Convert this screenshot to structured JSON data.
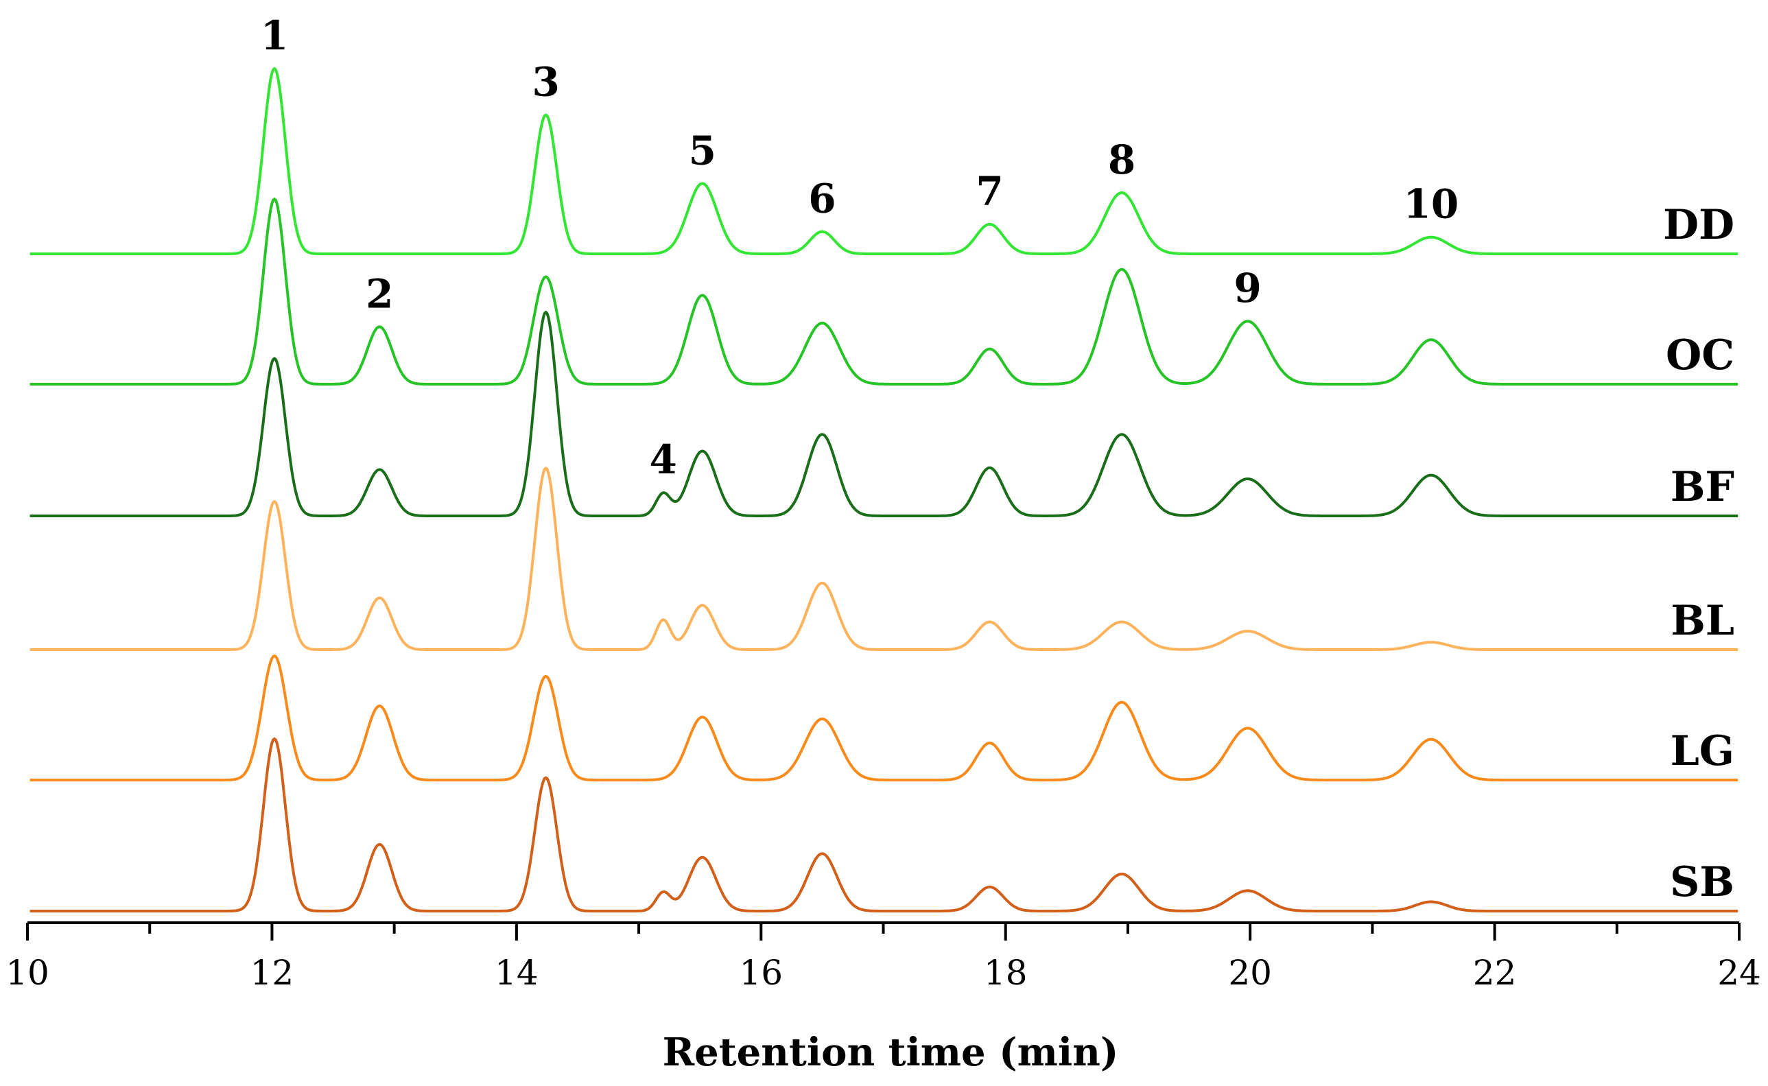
{
  "chart_data": {
    "type": "line",
    "title": "",
    "xlabel": "Retention time (min)",
    "ylabel": "",
    "xlim": [
      10,
      24
    ],
    "x_ticks": [
      10,
      12,
      14,
      16,
      18,
      20,
      22,
      24
    ],
    "x_tick_labels": [
      "10",
      "12",
      "14",
      "16",
      "18",
      "20",
      "22",
      "24"
    ],
    "grid": false,
    "legend": "none",
    "peaks": [
      {
        "id": "1",
        "rt": 12.02
      },
      {
        "id": "2",
        "rt": 12.88
      },
      {
        "id": "3",
        "rt": 14.24
      },
      {
        "id": "4",
        "rt": 15.2
      },
      {
        "id": "5",
        "rt": 15.52
      },
      {
        "id": "6",
        "rt": 16.5
      },
      {
        "id": "7",
        "rt": 17.87
      },
      {
        "id": "8",
        "rt": 18.95
      },
      {
        "id": "9",
        "rt": 19.98
      },
      {
        "id": "10",
        "rt": 21.48
      }
    ],
    "series": [
      {
        "name": "DD",
        "color": "#33e633",
        "peaks": [
          {
            "rt": 12.02,
            "height": 1.0,
            "width": 0.09
          },
          {
            "rt": 14.24,
            "height": 0.75,
            "width": 0.09
          },
          {
            "rt": 15.52,
            "height": 0.38,
            "width": 0.12
          },
          {
            "rt": 16.5,
            "height": 0.12,
            "width": 0.1
          },
          {
            "rt": 17.87,
            "height": 0.16,
            "width": 0.11
          },
          {
            "rt": 18.95,
            "height": 0.33,
            "width": 0.14
          },
          {
            "rt": 21.48,
            "height": 0.09,
            "width": 0.14
          }
        ]
      },
      {
        "name": "OC",
        "color": "#27c427",
        "peaks": [
          {
            "rt": 12.02,
            "height": 1.0,
            "width": 0.09
          },
          {
            "rt": 12.88,
            "height": 0.31,
            "width": 0.1
          },
          {
            "rt": 14.24,
            "height": 0.58,
            "width": 0.1
          },
          {
            "rt": 15.52,
            "height": 0.48,
            "width": 0.12
          },
          {
            "rt": 16.5,
            "height": 0.33,
            "width": 0.14
          },
          {
            "rt": 17.87,
            "height": 0.19,
            "width": 0.11
          },
          {
            "rt": 18.95,
            "height": 0.62,
            "width": 0.15
          },
          {
            "rt": 19.98,
            "height": 0.34,
            "width": 0.16
          },
          {
            "rt": 21.48,
            "height": 0.24,
            "width": 0.15
          }
        ]
      },
      {
        "name": "BF",
        "color": "#1a6e1a",
        "peaks": [
          {
            "rt": 12.02,
            "height": 0.85,
            "width": 0.09
          },
          {
            "rt": 12.88,
            "height": 0.25,
            "width": 0.1
          },
          {
            "rt": 14.24,
            "height": 1.1,
            "width": 0.09
          },
          {
            "rt": 15.2,
            "height": 0.12,
            "width": 0.06
          },
          {
            "rt": 15.52,
            "height": 0.35,
            "width": 0.11
          },
          {
            "rt": 16.5,
            "height": 0.44,
            "width": 0.12
          },
          {
            "rt": 17.87,
            "height": 0.26,
            "width": 0.11
          },
          {
            "rt": 18.95,
            "height": 0.44,
            "width": 0.15
          },
          {
            "rt": 19.98,
            "height": 0.2,
            "width": 0.16
          },
          {
            "rt": 21.48,
            "height": 0.22,
            "width": 0.15
          }
        ]
      },
      {
        "name": "BL",
        "color": "#fdb35c",
        "peaks": [
          {
            "rt": 12.02,
            "height": 0.8,
            "width": 0.09
          },
          {
            "rt": 12.88,
            "height": 0.28,
            "width": 0.1
          },
          {
            "rt": 14.24,
            "height": 0.98,
            "width": 0.09
          },
          {
            "rt": 15.2,
            "height": 0.16,
            "width": 0.06
          },
          {
            "rt": 15.52,
            "height": 0.24,
            "width": 0.1
          },
          {
            "rt": 16.5,
            "height": 0.36,
            "width": 0.12
          },
          {
            "rt": 17.87,
            "height": 0.15,
            "width": 0.11
          },
          {
            "rt": 18.95,
            "height": 0.15,
            "width": 0.15
          },
          {
            "rt": 19.98,
            "height": 0.1,
            "width": 0.16
          },
          {
            "rt": 21.48,
            "height": 0.04,
            "width": 0.14
          }
        ]
      },
      {
        "name": "LG",
        "color": "#f98b1c",
        "peaks": [
          {
            "rt": 12.02,
            "height": 0.67,
            "width": 0.1
          },
          {
            "rt": 12.88,
            "height": 0.4,
            "width": 0.11
          },
          {
            "rt": 14.24,
            "height": 0.56,
            "width": 0.1
          },
          {
            "rt": 15.52,
            "height": 0.34,
            "width": 0.12
          },
          {
            "rt": 16.5,
            "height": 0.33,
            "width": 0.14
          },
          {
            "rt": 17.87,
            "height": 0.2,
            "width": 0.11
          },
          {
            "rt": 18.95,
            "height": 0.42,
            "width": 0.15
          },
          {
            "rt": 19.98,
            "height": 0.28,
            "width": 0.16
          },
          {
            "rt": 21.48,
            "height": 0.22,
            "width": 0.15
          }
        ]
      },
      {
        "name": "SB",
        "color": "#d2601a",
        "peaks": [
          {
            "rt": 12.02,
            "height": 0.93,
            "width": 0.09
          },
          {
            "rt": 12.88,
            "height": 0.36,
            "width": 0.1
          },
          {
            "rt": 14.24,
            "height": 0.72,
            "width": 0.09
          },
          {
            "rt": 15.2,
            "height": 0.1,
            "width": 0.06
          },
          {
            "rt": 15.52,
            "height": 0.29,
            "width": 0.11
          },
          {
            "rt": 16.5,
            "height": 0.31,
            "width": 0.12
          },
          {
            "rt": 17.87,
            "height": 0.13,
            "width": 0.11
          },
          {
            "rt": 18.95,
            "height": 0.2,
            "width": 0.14
          },
          {
            "rt": 19.98,
            "height": 0.11,
            "width": 0.15
          },
          {
            "rt": 21.48,
            "height": 0.05,
            "width": 0.13
          }
        ]
      }
    ],
    "peak_labels": [
      {
        "text": "1",
        "rt": 12.02,
        "series": "DD"
      },
      {
        "text": "2",
        "rt": 12.88,
        "series": "OC"
      },
      {
        "text": "3",
        "rt": 14.24,
        "series": "DD"
      },
      {
        "text": "4",
        "rt": 15.2,
        "series": "BF"
      },
      {
        "text": "5",
        "rt": 15.52,
        "series": "DD"
      },
      {
        "text": "6",
        "rt": 16.5,
        "series": "DD"
      },
      {
        "text": "7",
        "rt": 17.87,
        "series": "DD"
      },
      {
        "text": "8",
        "rt": 18.95,
        "series": "DD"
      },
      {
        "text": "9",
        "rt": 19.98,
        "series": "OC"
      },
      {
        "text": "10",
        "rt": 21.48,
        "series": "DD"
      }
    ]
  }
}
